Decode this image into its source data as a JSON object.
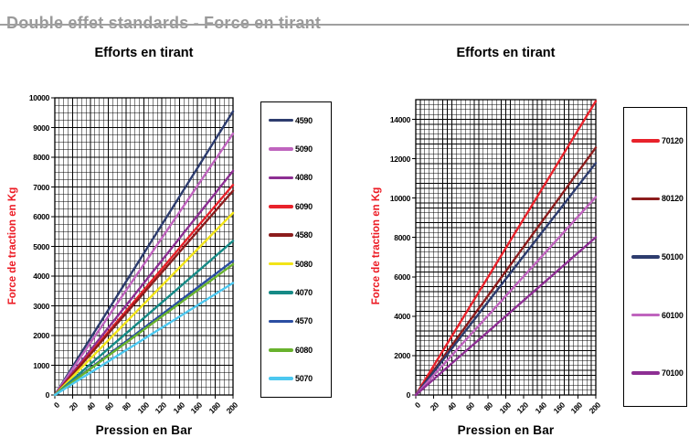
{
  "page": {
    "header": {
      "title": "Double effet standards - Force en tirant"
    }
  },
  "chart_data": [
    {
      "type": "line",
      "title": "Efforts en tirant",
      "xlabel": "Pression en Bar",
      "ylabel": "Force de traction en Kg",
      "x_range": [
        0,
        200
      ],
      "y_range": [
        0,
        10000
      ],
      "x_ticks": [
        0,
        20,
        40,
        60,
        80,
        100,
        120,
        140,
        160,
        180,
        200
      ],
      "y_ticks": [
        0,
        1000,
        2000,
        3000,
        4000,
        5000,
        6000,
        7000,
        8000,
        9000,
        10000
      ],
      "x_minor_step": 5,
      "y_minor_step": 250,
      "grid": "on",
      "legend_position": "right",
      "axis_title_color": "#ec1a23",
      "series": [
        {
          "name": "4590",
          "color": "#2d3c6e",
          "points": [
            [
              0,
              0
            ],
            [
              200,
              9543
            ]
          ]
        },
        {
          "name": "5090",
          "color": "#bf64be",
          "points": [
            [
              0,
              0
            ],
            [
              200,
              8796
            ]
          ]
        },
        {
          "name": "4080",
          "color": "#8d2f93",
          "points": [
            [
              0,
              0
            ],
            [
              200,
              7540
            ]
          ]
        },
        {
          "name": "6090",
          "color": "#e8222b",
          "points": [
            [
              0,
              0
            ],
            [
              200,
              7069
            ]
          ]
        },
        {
          "name": "4580",
          "color": "#8c1d1d",
          "points": [
            [
              0,
              0
            ],
            [
              200,
              6873
            ]
          ]
        },
        {
          "name": "5080",
          "color": "#f2e418",
          "points": [
            [
              0,
              0
            ],
            [
              200,
              6126
            ]
          ]
        },
        {
          "name": "4070",
          "color": "#168a86",
          "points": [
            [
              0,
              0
            ],
            [
              200,
              5184
            ]
          ]
        },
        {
          "name": "4570",
          "color": "#2b4ea2",
          "points": [
            [
              0,
              0
            ],
            [
              200,
              4516
            ]
          ]
        },
        {
          "name": "6080",
          "color": "#68b22d",
          "points": [
            [
              0,
              0
            ],
            [
              200,
              4398
            ]
          ]
        },
        {
          "name": "5070",
          "color": "#4cc8f0",
          "points": [
            [
              0,
              0
            ],
            [
              200,
              3770
            ]
          ]
        }
      ]
    },
    {
      "type": "line",
      "title": "Efforts en tirant",
      "xlabel": "Pression en Bar",
      "ylabel": "Force de traction en Kg",
      "x_range": [
        0,
        200
      ],
      "y_range": [
        0,
        15000
      ],
      "x_ticks": [
        0,
        20,
        40,
        60,
        80,
        100,
        120,
        140,
        160,
        180,
        200
      ],
      "y_ticks": [
        0,
        2000,
        4000,
        6000,
        8000,
        10000,
        12000,
        14000
      ],
      "x_minor_step": 5,
      "y_minor_step": 250,
      "grid": "on",
      "legend_position": "right",
      "axis_title_color": "#ec1a23",
      "series": [
        {
          "name": "70120",
          "color": "#e8222b",
          "points": [
            [
              0,
              0
            ],
            [
              200,
              14923
            ]
          ]
        },
        {
          "name": "80120",
          "color": "#8c1d1d",
          "points": [
            [
              0,
              0
            ],
            [
              200,
              12566
            ]
          ]
        },
        {
          "name": "50100",
          "color": "#2d3c6e",
          "points": [
            [
              0,
              0
            ],
            [
              200,
              11781
            ]
          ]
        },
        {
          "name": "60100",
          "color": "#bf64be",
          "points": [
            [
              0,
              0
            ],
            [
              200,
              10053
            ]
          ]
        },
        {
          "name": "70100",
          "color": "#8d2f93",
          "points": [
            [
              0,
              0
            ],
            [
              200,
              8011
            ]
          ]
        }
      ]
    }
  ]
}
